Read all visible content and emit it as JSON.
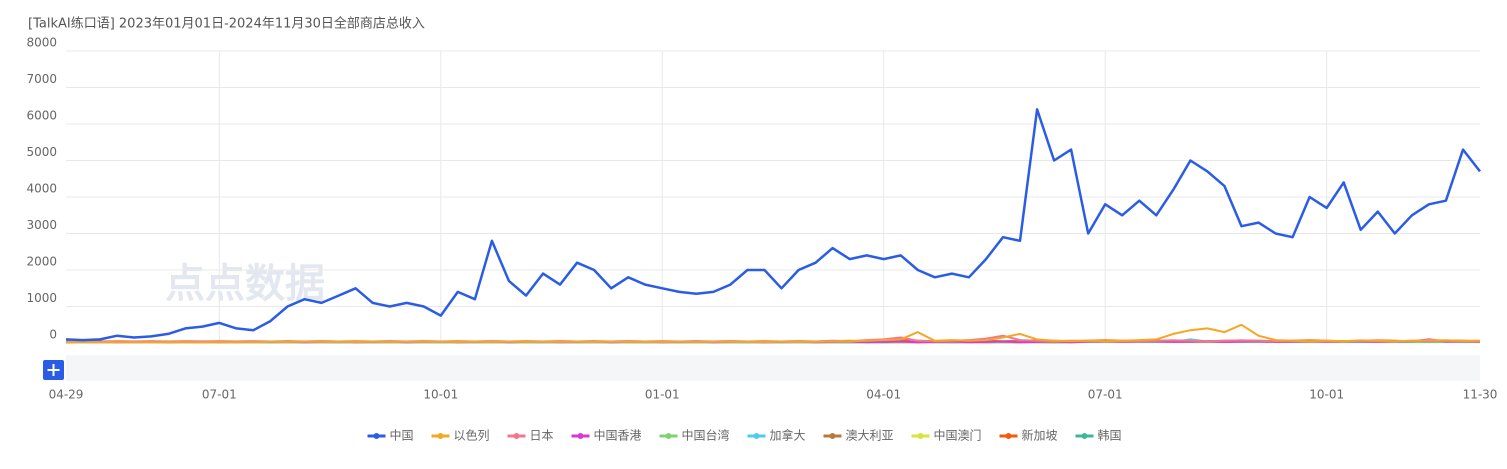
{
  "chart_data": {
    "type": "line",
    "title": "[TalkAI练口语] 2023年01月01日-2024年11月30日全部商店总收入",
    "watermark": "点点数据",
    "categories": [
      "04-29",
      null,
      null,
      null,
      null,
      null,
      null,
      null,
      null,
      "07-01",
      null,
      null,
      null,
      null,
      null,
      null,
      null,
      null,
      null,
      null,
      null,
      null,
      "10-01",
      null,
      null,
      null,
      null,
      null,
      null,
      null,
      null,
      null,
      null,
      null,
      null,
      "01-01",
      null,
      null,
      null,
      null,
      null,
      null,
      null,
      null,
      null,
      null,
      null,
      null,
      "04-01",
      null,
      null,
      null,
      null,
      null,
      null,
      null,
      null,
      null,
      null,
      null,
      null,
      "07-01",
      null,
      null,
      null,
      null,
      null,
      null,
      null,
      null,
      null,
      null,
      null,
      null,
      "10-01",
      null,
      null,
      null,
      null,
      null,
      null,
      null,
      null,
      "11-30"
    ],
    "ylim": [
      0,
      8000
    ],
    "yticks": [
      0,
      1000,
      2000,
      3000,
      4000,
      5000,
      6000,
      7000,
      8000
    ],
    "grid": true,
    "legend": "bottom",
    "series": [
      {
        "name": "中国",
        "color": "#2b5ce6",
        "values": [
          100,
          80,
          100,
          200,
          150,
          180,
          250,
          400,
          450,
          550,
          400,
          350,
          600,
          1000,
          1200,
          1100,
          1300,
          1500,
          1100,
          1000,
          1100,
          1000,
          750,
          1400,
          1200,
          2800,
          1700,
          1300,
          1900,
          1600,
          2200,
          2000,
          1500,
          1800,
          1600,
          1500,
          1400,
          1350,
          1400,
          1600,
          2000,
          2000,
          1500,
          2000,
          2200,
          2600,
          2300,
          2400,
          2300,
          2400,
          2000,
          1800,
          1900,
          1800,
          2300,
          2900,
          2800,
          6400,
          5000,
          5300,
          3000,
          3800,
          3500,
          3900,
          3500,
          4200,
          5000,
          4700,
          4300,
          3200,
          3300,
          3000,
          2900,
          4000,
          3700,
          4400,
          3100,
          3600,
          3000,
          3500,
          3800,
          3900,
          5300,
          4700
        ]
      },
      {
        "name": "以色列",
        "color": "#f5a623",
        "values": [
          20,
          20,
          20,
          20,
          20,
          20,
          20,
          20,
          20,
          20,
          20,
          20,
          30,
          30,
          30,
          30,
          30,
          30,
          30,
          30,
          30,
          30,
          30,
          30,
          30,
          30,
          30,
          30,
          30,
          30,
          30,
          30,
          30,
          30,
          30,
          30,
          30,
          30,
          30,
          30,
          30,
          30,
          30,
          30,
          30,
          40,
          50,
          60,
          80,
          100,
          300,
          60,
          80,
          60,
          80,
          150,
          250,
          100,
          60,
          50,
          60,
          50,
          60,
          80,
          100,
          250,
          350,
          400,
          300,
          500,
          200,
          80,
          60,
          50,
          60,
          50,
          70,
          60,
          50,
          60,
          80,
          70,
          60,
          60
        ]
      },
      {
        "name": "日本",
        "color": "#f0788c",
        "values": [
          60,
          40,
          30,
          40,
          30,
          40,
          30,
          40,
          30,
          40,
          30,
          40,
          40,
          30,
          40,
          50,
          40,
          30,
          40,
          30,
          40,
          50,
          40,
          30,
          40,
          50,
          40,
          30,
          40,
          50,
          40,
          30,
          40,
          50,
          40,
          30,
          40,
          30,
          40,
          50,
          40,
          30,
          40,
          50,
          40,
          60,
          50,
          80,
          100,
          150,
          60,
          50,
          60,
          80,
          120,
          200,
          80,
          60,
          50,
          60,
          60,
          50,
          40,
          50,
          60,
          70,
          60,
          50,
          60,
          70,
          60,
          50,
          60,
          50,
          40,
          50,
          60,
          50,
          40,
          60,
          50,
          60,
          50,
          40
        ]
      },
      {
        "name": "中国香港",
        "color": "#d43ad4",
        "values": [
          20,
          30,
          40,
          20,
          30,
          40,
          20,
          30,
          40,
          20,
          30,
          40,
          30,
          40,
          20,
          30,
          40,
          20,
          30,
          40,
          20,
          30,
          40,
          20,
          30,
          40,
          20,
          30,
          40,
          20,
          30,
          40,
          20,
          30,
          40,
          20,
          30,
          40,
          20,
          30,
          40,
          20,
          30,
          40,
          20,
          30,
          40,
          20,
          30,
          40,
          20,
          30,
          40,
          20,
          30,
          40,
          20,
          30,
          40,
          20,
          40,
          50,
          30,
          40,
          50,
          30,
          40,
          50,
          30,
          40,
          50,
          30,
          40,
          50,
          30,
          40,
          50,
          30,
          40,
          50,
          100,
          40,
          50,
          30
        ]
      },
      {
        "name": "中国台湾",
        "color": "#7ed36f",
        "values": [
          10,
          40,
          20,
          30,
          20,
          30,
          20,
          30,
          20,
          30,
          20,
          30,
          30,
          20,
          30,
          20,
          30,
          20,
          30,
          20,
          30,
          20,
          30,
          20,
          30,
          20,
          30,
          20,
          30,
          20,
          30,
          20,
          30,
          20,
          30,
          20,
          30,
          20,
          30,
          20,
          30,
          20,
          30,
          20,
          30,
          20,
          30,
          20,
          30,
          20,
          30,
          20,
          30,
          20,
          30,
          20,
          30,
          20,
          30,
          20,
          40,
          30,
          40,
          30,
          40,
          30,
          40,
          30,
          40,
          30,
          40,
          30,
          40,
          30,
          40,
          30,
          40,
          30,
          40,
          30,
          40,
          30,
          40,
          30
        ]
      },
      {
        "name": "加拿大",
        "color": "#4fcde8",
        "values": [
          20,
          20,
          20,
          20,
          20,
          20,
          20,
          20,
          20,
          20,
          20,
          20,
          20,
          20,
          20,
          20,
          20,
          20,
          20,
          20,
          20,
          20,
          20,
          20,
          20,
          20,
          20,
          20,
          20,
          20,
          20,
          20,
          20,
          20,
          20,
          20,
          20,
          20,
          20,
          20,
          20,
          20,
          20,
          20,
          20,
          20,
          20,
          20,
          20,
          30,
          30,
          30,
          30,
          30,
          30,
          30,
          30,
          30,
          30,
          30,
          30,
          30,
          30,
          30,
          30,
          30,
          100,
          40,
          30,
          30,
          30,
          30,
          30,
          30,
          30,
          30,
          30,
          30,
          30,
          30,
          30,
          30,
          30,
          30
        ]
      },
      {
        "name": "澳大利亚",
        "color": "#b87a3a",
        "values": [
          20,
          20,
          20,
          20,
          20,
          20,
          20,
          20,
          20,
          20,
          20,
          20,
          20,
          20,
          20,
          20,
          20,
          20,
          20,
          20,
          20,
          20,
          20,
          20,
          20,
          20,
          20,
          20,
          20,
          20,
          20,
          20,
          20,
          20,
          20,
          20,
          20,
          20,
          20,
          20,
          20,
          20,
          20,
          20,
          20,
          20,
          20,
          20,
          20,
          20,
          20,
          20,
          20,
          20,
          20,
          20,
          20,
          20,
          20,
          20,
          30,
          30,
          30,
          30,
          30,
          30,
          30,
          30,
          30,
          30,
          30,
          30,
          30,
          30,
          30,
          30,
          30,
          30,
          30,
          30,
          30,
          30,
          30,
          30
        ]
      },
      {
        "name": "中国澳门",
        "color": "#d4e63a",
        "values": [
          30,
          30,
          30,
          30,
          30,
          30,
          30,
          30,
          30,
          30,
          30,
          30,
          30,
          30,
          30,
          30,
          30,
          30,
          30,
          30,
          30,
          30,
          30,
          30,
          30,
          30,
          30,
          30,
          30,
          30,
          30,
          30,
          30,
          30,
          30,
          30,
          30,
          30,
          30,
          30,
          30,
          30,
          30,
          30,
          30,
          30,
          30,
          30,
          30,
          30,
          30,
          30,
          30,
          30,
          30,
          30,
          30,
          30,
          30,
          30,
          30,
          30,
          30,
          30,
          30,
          30,
          30,
          30,
          30,
          30,
          30,
          30,
          30,
          30,
          30,
          30,
          30,
          30,
          30,
          30,
          30,
          30,
          30,
          30
        ]
      },
      {
        "name": "新加坡",
        "color": "#f55a0a",
        "values": [
          40,
          50,
          40,
          50,
          40,
          50,
          40,
          50,
          40,
          50,
          40,
          50,
          40,
          50,
          40,
          50,
          40,
          50,
          40,
          50,
          40,
          50,
          40,
          50,
          40,
          50,
          40,
          50,
          40,
          50,
          40,
          50,
          40,
          50,
          40,
          50,
          40,
          50,
          40,
          50,
          40,
          50,
          40,
          50,
          40,
          50,
          60,
          50,
          60,
          70,
          60,
          50,
          60,
          70,
          60,
          50,
          60,
          70,
          60,
          50,
          60,
          70,
          60,
          50,
          60,
          70,
          60,
          50,
          60,
          70,
          60,
          50,
          60,
          70,
          60,
          50,
          60,
          70,
          60,
          50,
          60,
          70,
          60,
          50
        ]
      },
      {
        "name": "韩国",
        "color": "#3fb59a",
        "values": [
          20,
          30,
          20,
          30,
          20,
          30,
          20,
          30,
          20,
          30,
          20,
          30,
          20,
          30,
          20,
          30,
          20,
          30,
          20,
          30,
          20,
          30,
          20,
          30,
          20,
          30,
          20,
          30,
          20,
          30,
          20,
          30,
          20,
          30,
          20,
          30,
          20,
          30,
          20,
          30,
          20,
          30,
          20,
          30,
          20,
          30,
          20,
          30,
          20,
          30,
          20,
          30,
          20,
          30,
          20,
          30,
          20,
          30,
          20,
          30,
          30,
          40,
          30,
          40,
          30,
          40,
          30,
          40,
          30,
          40,
          30,
          40,
          30,
          40,
          30,
          40,
          30,
          40,
          30,
          40,
          30,
          40,
          30,
          40
        ]
      }
    ]
  }
}
